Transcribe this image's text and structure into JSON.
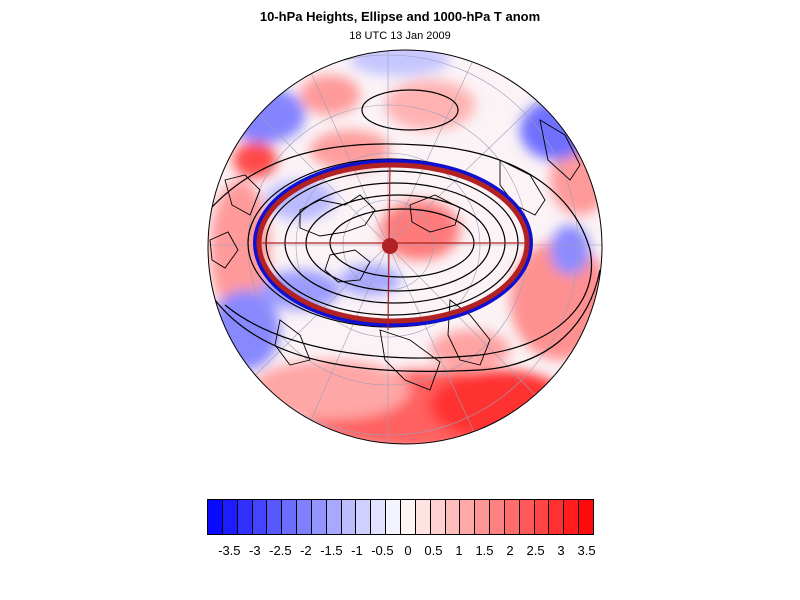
{
  "title": "10-hPa Heights, Ellipse and 1000-hPa T anom",
  "subtitle": "18 UTC 13 Jan 2009",
  "map": {
    "projection": "north-polar-stereographic",
    "fill_field": "1000-hPa T anom",
    "contour_field": "10-hPa Heights",
    "ellipse_color": "#b22222",
    "contour_color": "#000000"
  },
  "colorbar": {
    "labels": [
      "-3.5",
      "-3",
      "-2.5",
      "-2",
      "-1.5",
      "-1",
      "-0.5",
      "0",
      "0.5",
      "1",
      "1.5",
      "2",
      "2.5",
      "3",
      "3.5"
    ],
    "colors": [
      "#0a0aff",
      "#1c1cff",
      "#3030ff",
      "#4444ff",
      "#5858ff",
      "#6c6cff",
      "#8080ff",
      "#9494ff",
      "#a8a8ff",
      "#bcbcff",
      "#d0d0ff",
      "#e2e2ff",
      "#f4f4ff",
      "#fff4f4",
      "#ffe2e2",
      "#ffd0d0",
      "#ffbcbc",
      "#ffa8a8",
      "#ff9494",
      "#ff8080",
      "#ff6c6c",
      "#ff5858",
      "#ff4444",
      "#ff3030",
      "#ff1c1c",
      "#ff0a0a"
    ]
  }
}
